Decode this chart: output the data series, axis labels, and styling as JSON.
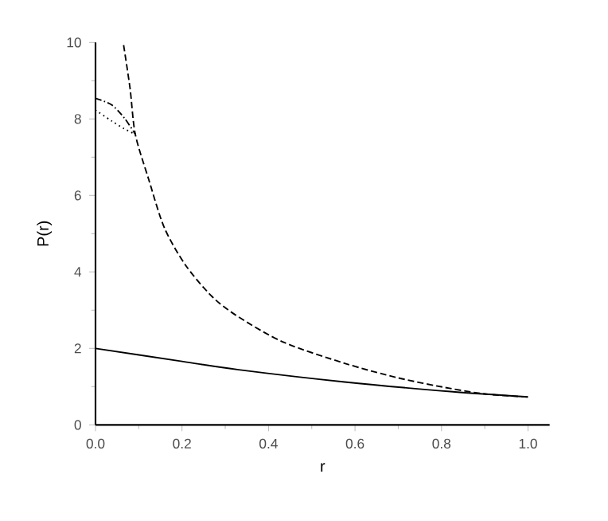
{
  "chart_data": {
    "type": "line",
    "xlabel": "r",
    "ylabel": "P(r)",
    "xlim": [
      0,
      1.05
    ],
    "ylim": [
      0,
      10
    ],
    "xticks": [
      {
        "value": 0,
        "label": "0.0"
      },
      0.2,
      0.4,
      0.6,
      0.8,
      {
        "value": 1,
        "label": "1.0"
      }
    ],
    "yticks": [
      0,
      2,
      4,
      6,
      8,
      10
    ],
    "grid": false,
    "marker": "none",
    "series": [
      {
        "color": "#000000",
        "line_style": "solid",
        "x": [
          0,
          0.2,
          0.331,
          0.576,
          0.821,
          1.0
        ],
        "values": [
          2,
          1.66,
          1.44,
          1.12,
          0.87,
          0.73
        ]
      },
      {
        "color": "#000000",
        "line_style": "dashed",
        "x": [
          0.065,
          0.08,
          0.092,
          0.123,
          0.159,
          0.208,
          0.27,
          0.331,
          0.435,
          0.576,
          0.699,
          0.821,
          0.907,
          1.0
        ],
        "values": [
          9.93,
          8.79,
          7.6,
          6.42,
          5.16,
          4.18,
          3.35,
          2.82,
          2.16,
          1.61,
          1.23,
          0.95,
          0.8,
          0.73
        ]
      },
      {
        "color": "#000000",
        "line_style": "dashdot",
        "x": [
          0,
          0.037,
          0.067,
          0.092
        ],
        "values": [
          8.54,
          8.37,
          8.02,
          7.6
        ]
      },
      {
        "color": "#000000",
        "line_style": "dotted",
        "x": [
          0,
          0.037,
          0.067,
          0.092
        ],
        "values": [
          8.23,
          7.95,
          7.74,
          7.6
        ]
      }
    ]
  }
}
